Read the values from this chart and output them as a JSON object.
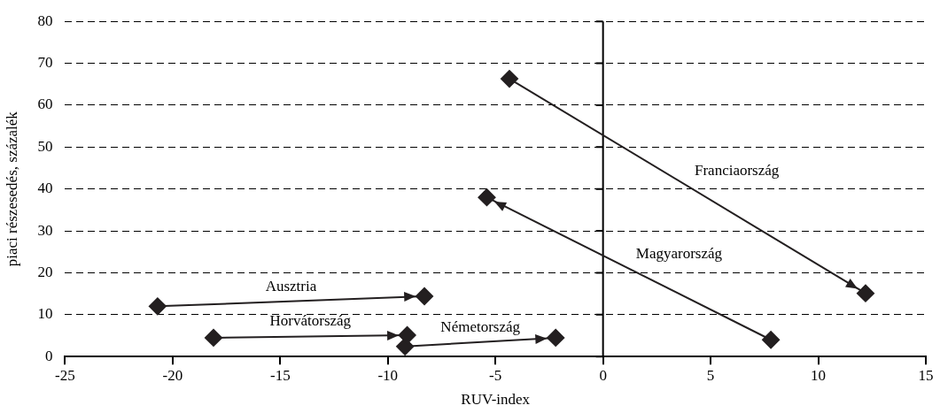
{
  "chart_data": {
    "type": "line",
    "xlabel": "RUV-index",
    "ylabel": "piaci részesedés, százalék",
    "xlim": [
      -25,
      15
    ],
    "xticks": [
      -25,
      -20,
      -15,
      -10,
      -5,
      0,
      5,
      10,
      15
    ],
    "ylim": [
      0,
      80
    ],
    "yticks": [
      0,
      10,
      20,
      30,
      40,
      50,
      60,
      70,
      80
    ],
    "grid": "y",
    "legend": false,
    "marker": "diamond",
    "line_style": "solid",
    "ref_lines": [
      {
        "axis": "x",
        "value": 0,
        "color": "#000000"
      }
    ],
    "series": [
      {
        "name": "Franciaország",
        "color": "#231f20",
        "x": [
          -4.35,
          12.2
        ],
        "values": [
          66.3,
          15.1
        ]
      },
      {
        "name": "Magyarország",
        "color": "#231f20",
        "x": [
          7.8,
          -5.4
        ],
        "values": [
          4.0,
          38.0
        ]
      },
      {
        "name": "Ausztria",
        "color": "#231f20",
        "x": [
          -20.7,
          -8.3
        ],
        "values": [
          12.0,
          14.4
        ]
      },
      {
        "name": "Horvátország",
        "color": "#231f20",
        "x": [
          -18.1,
          -9.1
        ],
        "values": [
          4.5,
          5.1
        ]
      },
      {
        "name": "Németország",
        "color": "#231f20",
        "x": [
          -9.2,
          -2.2
        ],
        "values": [
          2.4,
          4.5
        ]
      }
    ]
  }
}
